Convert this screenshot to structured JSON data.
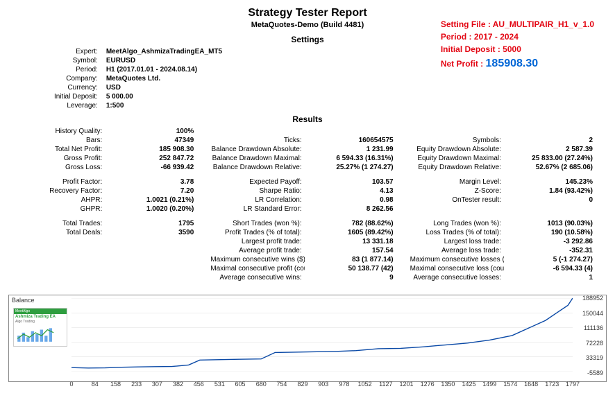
{
  "header": {
    "title": "Strategy Tester Report",
    "subtitle": "MetaQuotes-Demo (Build 4481)",
    "settings_head": "Settings",
    "results_head": "Results"
  },
  "callout": {
    "setting_file": "Setting File : AU_MULTIPAIR_H1_v_1.0",
    "period": "Period : 2017 - 2024",
    "initial_deposit": "Initial Deposit : 5000",
    "net_profit_label": "Net Profit : ",
    "net_profit_value": "185908.30"
  },
  "settings": {
    "rows": [
      {
        "lbl": "Expert:",
        "val": "MeetAlgo_AshmizaTradingEA_MT5"
      },
      {
        "lbl": "Symbol:",
        "val": "EURUSD"
      },
      {
        "lbl": "Period:",
        "val": "H1 (2017.01.01 - 2024.08.14)"
      },
      {
        "lbl": "Company:",
        "val": "MetaQuotes Ltd."
      },
      {
        "lbl": "Currency:",
        "val": "USD"
      },
      {
        "lbl": "Initial Deposit:",
        "val": "5 000.00"
      },
      {
        "lbl": "Leverage:",
        "val": "1:500"
      }
    ]
  },
  "results": {
    "block1": [
      {
        "l1": "History Quality:",
        "v1": "100%",
        "l2": "",
        "v2": "",
        "l3": "",
        "v3": ""
      },
      {
        "l1": "Bars:",
        "v1": "47349",
        "l2": "Ticks:",
        "v2": "160654575",
        "l3": "Symbols:",
        "v3": "2"
      },
      {
        "l1": "Total Net Profit:",
        "v1": "185 908.30",
        "l2": "Balance Drawdown Absolute:",
        "v2": "1 231.99",
        "l3": "Equity Drawdown Absolute:",
        "v3": "2 587.39"
      },
      {
        "l1": "Gross Profit:",
        "v1": "252 847.72",
        "l2": "Balance Drawdown Maximal:",
        "v2": "6 594.33 (16.31%)",
        "l3": "Equity Drawdown Maximal:",
        "v3": "25 833.00 (27.24%)"
      },
      {
        "l1": "Gross Loss:",
        "v1": "-66 939.42",
        "l2": "Balance Drawdown Relative:",
        "v2": "25.27% (1 274.27)",
        "l3": "Equity Drawdown Relative:",
        "v3": "52.67% (2 685.06)"
      }
    ],
    "block2": [
      {
        "l1": "Profit Factor:",
        "v1": "3.78",
        "l2": "Expected Payoff:",
        "v2": "103.57",
        "l3": "Margin Level:",
        "v3": "145.23%"
      },
      {
        "l1": "Recovery Factor:",
        "v1": "7.20",
        "l2": "Sharpe Ratio:",
        "v2": "4.13",
        "l3": "Z-Score:",
        "v3": "1.84 (93.42%)"
      },
      {
        "l1": "AHPR:",
        "v1": "1.0021 (0.21%)",
        "l2": "LR Correlation:",
        "v2": "0.98",
        "l3": "OnTester result:",
        "v3": "0"
      },
      {
        "l1": "GHPR:",
        "v1": "1.0020 (0.20%)",
        "l2": "LR Standard Error:",
        "v2": "8 262.56",
        "l3": "",
        "v3": ""
      }
    ],
    "block3": [
      {
        "l1": "Total Trades:",
        "v1": "1795",
        "l2": "Short Trades (won %):",
        "v2": "782 (88.62%)",
        "l3": "Long Trades (won %):",
        "v3": "1013 (90.03%)"
      },
      {
        "l1": "Total Deals:",
        "v1": "3590",
        "l2": "Profit Trades (% of total):",
        "v2": "1605 (89.42%)",
        "l3": "Loss Trades (% of total):",
        "v3": "190 (10.58%)"
      },
      {
        "l1": "",
        "v1": "",
        "l2": "Largest profit trade:",
        "v2": "13 331.18",
        "l3": "Largest loss trade:",
        "v3": "-3 292.86"
      },
      {
        "l1": "",
        "v1": "",
        "l2": "Average profit trade:",
        "v2": "157.54",
        "l3": "Average loss trade:",
        "v3": "-352.31"
      },
      {
        "l1": "",
        "v1": "",
        "l2": "Maximum consecutive wins ($):",
        "v2": "83 (1 877.14)",
        "l3": "Maximum consecutive losses ($):",
        "v3": "5 (-1 274.27)"
      },
      {
        "l1": "",
        "v1": "",
        "l2": "Maximal consecutive profit (count):",
        "v2": "50 138.77 (42)",
        "l3": "Maximal consecutive loss (count):",
        "v3": "-6 594.33 (4)"
      },
      {
        "l1": "",
        "v1": "",
        "l2": "Average consecutive wins:",
        "v2": "9",
        "l3": "Average consecutive losses:",
        "v3": "1"
      }
    ]
  },
  "chart": {
    "label": "Balance",
    "ymin": -5589,
    "ymax": 188952,
    "yticks": [
      188952,
      150044,
      111136,
      72228,
      33319,
      -5589
    ],
    "xticks": [
      0,
      84,
      158,
      233,
      307,
      382,
      456,
      531,
      605,
      680,
      754,
      829,
      903,
      978,
      1052,
      1127,
      1201,
      1276,
      1350,
      1425,
      1499,
      1574,
      1648,
      1723,
      1797
    ],
    "line_color": "#0a49a6",
    "grid_color": "#dcdcdc",
    "points": [
      [
        0,
        5000
      ],
      [
        60,
        4000
      ],
      [
        120,
        4500
      ],
      [
        180,
        6000
      ],
      [
        240,
        7000
      ],
      [
        300,
        7500
      ],
      [
        360,
        8000
      ],
      [
        420,
        12000
      ],
      [
        460,
        25000
      ],
      [
        520,
        26000
      ],
      [
        600,
        27000
      ],
      [
        680,
        28000
      ],
      [
        730,
        45000
      ],
      [
        800,
        46000
      ],
      [
        880,
        47000
      ],
      [
        950,
        48000
      ],
      [
        1020,
        50000
      ],
      [
        1100,
        55000
      ],
      [
        1180,
        56000
      ],
      [
        1260,
        60000
      ],
      [
        1340,
        65000
      ],
      [
        1420,
        70000
      ],
      [
        1500,
        78000
      ],
      [
        1580,
        90000
      ],
      [
        1640,
        110000
      ],
      [
        1700,
        130000
      ],
      [
        1740,
        150000
      ],
      [
        1780,
        170000
      ],
      [
        1797,
        188952
      ]
    ],
    "thumb": {
      "brand": "MeetAlgo",
      "title": "Ashmiza Trading EA",
      "sub": "Algo Trading"
    }
  }
}
